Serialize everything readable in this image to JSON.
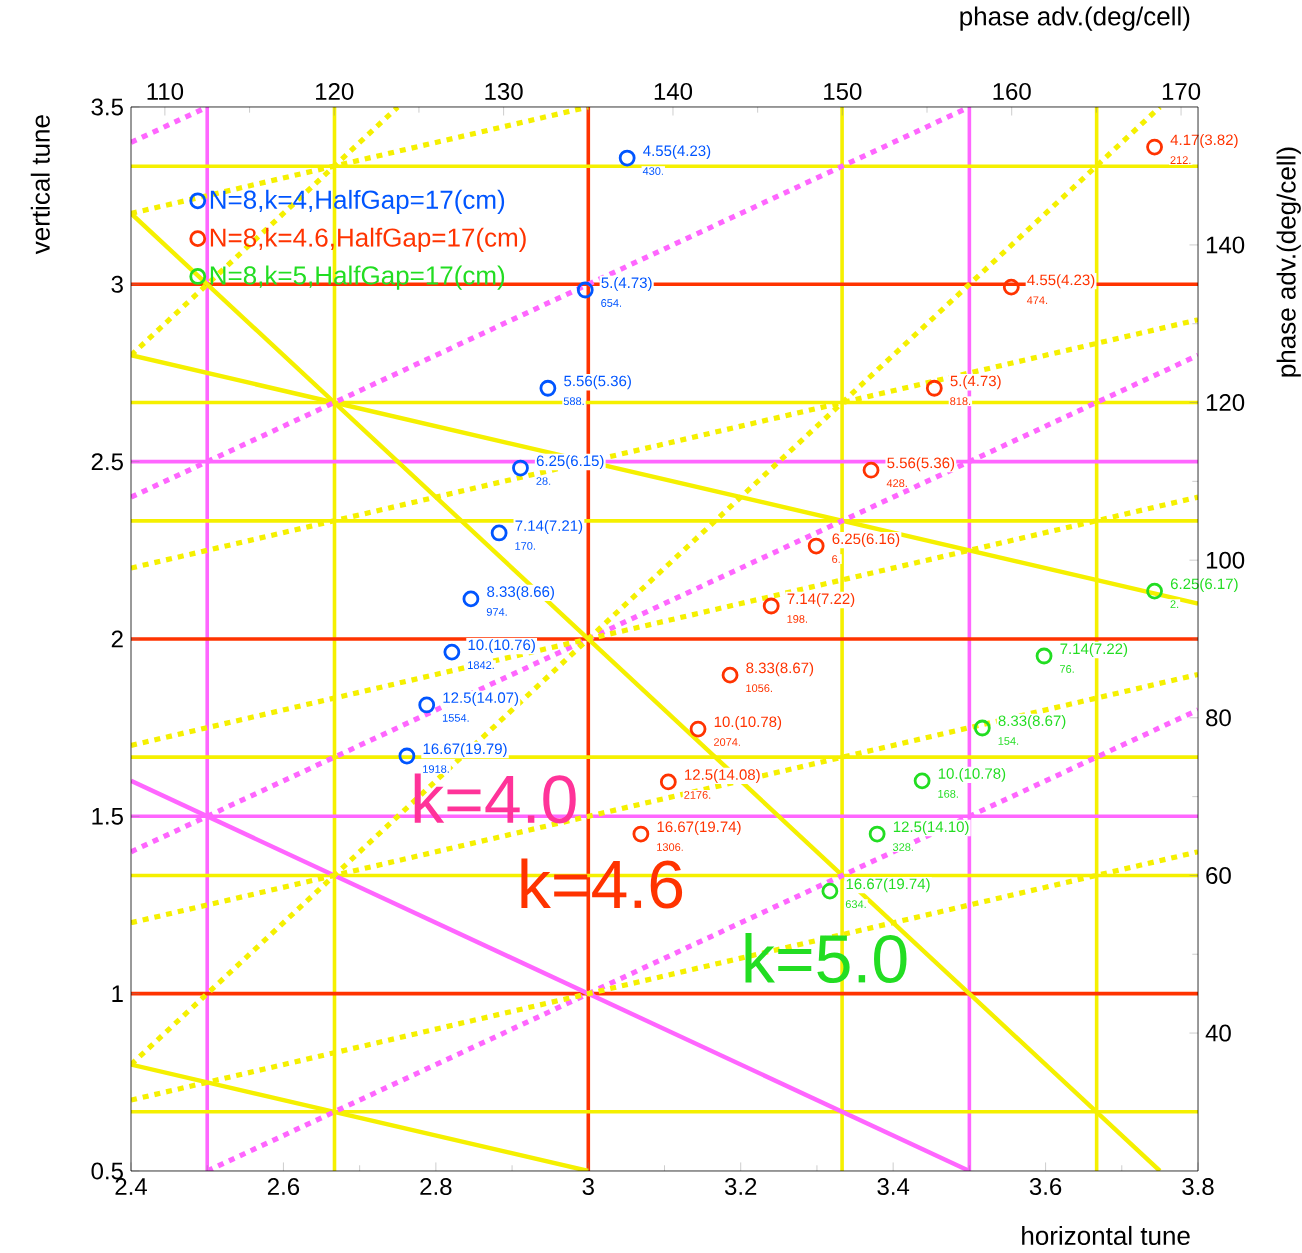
{
  "chart_data": {
    "type": "scatter",
    "xlabel": "horizontal tune",
    "ylabel": "vertical tune",
    "x2label": "phase adv.(deg/cell)",
    "y2label": "phase adv.(deg/cell)",
    "xlim": [
      2.4,
      3.8
    ],
    "ylim": [
      0.5,
      3.5
    ],
    "xticks": [
      2.4,
      2.6,
      2.8,
      3,
      3.2,
      3.4,
      3.6,
      3.8
    ],
    "yticks": [
      0.5,
      1,
      1.5,
      2,
      2.5,
      3,
      3.5
    ],
    "x2lim": [
      108,
      171
    ],
    "x2ticks": [
      110,
      120,
      130,
      140,
      150,
      160,
      170
    ],
    "y2lim": [
      22.5,
      157.5
    ],
    "y2ticks": [
      40,
      60,
      80,
      100,
      120,
      140
    ],
    "legend": "top left",
    "series": [
      {
        "name": "N=8,k=4,HalfGap=17(cm)",
        "color": "#0055ff",
        "marker": "circle",
        "x": [
          3.051,
          2.996,
          2.947,
          2.911,
          2.883,
          2.846,
          2.821,
          2.788,
          2.762
        ],
        "values": [
          3.356,
          2.984,
          2.707,
          2.482,
          2.299,
          2.113,
          1.963,
          1.814,
          1.67
        ]
      },
      {
        "name": "N=8,k=4.6,HalfGap=17(cm)",
        "color": "#ff3300",
        "marker": "circle",
        "x": [
          3.743,
          3.555,
          3.454,
          3.371,
          3.299,
          3.24,
          3.186,
          3.144,
          3.105,
          3.069
        ],
        "values": [
          3.387,
          2.992,
          2.707,
          2.476,
          2.262,
          2.093,
          1.898,
          1.746,
          1.597,
          1.45
        ]
      },
      {
        "name": "N=8,k=5,HalfGap=17(cm)",
        "color": "#22dd22",
        "marker": "circle",
        "x": [
          3.743,
          3.598,
          3.517,
          3.438,
          3.379,
          3.317
        ],
        "values": [
          2.135,
          1.952,
          1.749,
          1.6,
          1.45,
          1.289
        ]
      },
      {
        "type": "line",
        "color": "#ff66ff",
        "line_style": "solid",
        "x": [
          2.4,
          3.5
        ],
        "values": [
          1.6,
          0.5
        ]
      },
      {
        "type": "line",
        "color": "#f5f000",
        "line_style": "solid",
        "x": [
          2.4,
          3.75
        ],
        "values": [
          3.2,
          0.5
        ]
      },
      {
        "type": "line",
        "color": "#f5f000",
        "line_style": "solid",
        "x": [
          2.4,
          3.8
        ],
        "values": [
          2.8,
          2.1
        ]
      },
      {
        "type": "line",
        "color": "#f5f000",
        "line_style": "solid",
        "x": [
          2.4,
          3.0
        ],
        "values": [
          0.8,
          0.5
        ]
      },
      {
        "type": "line",
        "color": "#ff66ff",
        "line_style": "dotted",
        "x": [
          2.4,
          2.5
        ],
        "values": [
          3.4,
          3.5
        ]
      },
      {
        "type": "line",
        "color": "#ff66ff",
        "line_style": "dotted",
        "x": [
          2.4,
          3.5
        ],
        "values": [
          2.4,
          3.5
        ]
      },
      {
        "type": "line",
        "color": "#ff66ff",
        "line_style": "dotted",
        "x": [
          2.4,
          3.8
        ],
        "values": [
          1.4,
          2.8
        ]
      },
      {
        "type": "line",
        "color": "#ff66ff",
        "line_style": "dotted",
        "x": [
          2.5,
          3.8
        ],
        "values": [
          0.5,
          1.8
        ]
      },
      {
        "type": "line",
        "color": "#f5f000",
        "line_style": "dotted",
        "x": [
          2.4,
          3.8
        ],
        "values": [
          0.7,
          1.4
        ]
      },
      {
        "type": "line",
        "color": "#f5f000",
        "line_style": "dotted",
        "x": [
          2.4,
          3.8
        ],
        "values": [
          1.2,
          1.9
        ]
      },
      {
        "type": "line",
        "color": "#f5f000",
        "line_style": "dotted",
        "x": [
          2.4,
          3.8
        ],
        "values": [
          1.7,
          2.4
        ]
      },
      {
        "type": "line",
        "color": "#f5f000",
        "line_style": "dotted",
        "x": [
          2.4,
          3.8
        ],
        "values": [
          2.2,
          2.9
        ]
      },
      {
        "type": "line",
        "color": "#f5f000",
        "line_style": "dotted",
        "x": [
          2.4,
          3.0
        ],
        "values": [
          3.2,
          3.5
        ]
      },
      {
        "type": "line",
        "color": "#f5f000",
        "line_style": "dotted",
        "x": [
          2.4,
          2.75
        ],
        "values": [
          2.8,
          3.5
        ]
      },
      {
        "type": "line",
        "color": "#f5f000",
        "line_style": "dotted",
        "x": [
          2.4,
          3.75
        ],
        "values": [
          0.8,
          3.5
        ]
      }
    ],
    "ref_lines": [
      {
        "axis": "x",
        "value": 2.5,
        "color": "#ff66ff"
      },
      {
        "axis": "x",
        "value": 2.667,
        "color": "#f5f000"
      },
      {
        "axis": "x",
        "value": 3,
        "color": "#ff3300"
      },
      {
        "axis": "x",
        "value": 3.333,
        "color": "#f5f000"
      },
      {
        "axis": "x",
        "value": 3.5,
        "color": "#ff66ff"
      },
      {
        "axis": "x",
        "value": 3.667,
        "color": "#f5f000"
      },
      {
        "axis": "y",
        "value": 0.667,
        "color": "#f5f000"
      },
      {
        "axis": "y",
        "value": 1,
        "color": "#ff3300"
      },
      {
        "axis": "y",
        "value": 1.333,
        "color": "#f5f000"
      },
      {
        "axis": "y",
        "value": 1.5,
        "color": "#ff66ff"
      },
      {
        "axis": "y",
        "value": 1.667,
        "color": "#f5f000"
      },
      {
        "axis": "y",
        "value": 2,
        "color": "#ff3300"
      },
      {
        "axis": "y",
        "value": 2.333,
        "color": "#f5f000"
      },
      {
        "axis": "y",
        "value": 2.5,
        "color": "#ff66ff"
      },
      {
        "axis": "y",
        "value": 2.667,
        "color": "#f5f000"
      },
      {
        "axis": "y",
        "value": 3,
        "color": "#ff3300"
      },
      {
        "axis": "y",
        "value": 3.333,
        "color": "#f5f000"
      }
    ],
    "annotations": [
      "k=4.0",
      "k=4.6",
      "k=5.0",
      {
        "text": "4.55(4.23)",
        "x": 3.051,
        "y": 3.356
      },
      {
        "text": "430.",
        "x": 3.051,
        "y": 3.356
      },
      {
        "text": "5.(4.73)",
        "x": 2.996,
        "y": 2.984
      },
      {
        "text": "654.",
        "x": 2.996,
        "y": 2.984
      },
      {
        "text": "5.56(5.36)",
        "x": 2.947,
        "y": 2.707
      },
      {
        "text": "588.",
        "x": 2.947,
        "y": 2.707
      },
      {
        "text": "6.25(6.15)",
        "x": 2.911,
        "y": 2.482
      },
      {
        "text": "28.",
        "x": 2.911,
        "y": 2.482
      },
      {
        "text": "7.14(7.21)",
        "x": 2.883,
        "y": 2.299
      },
      {
        "text": "170.",
        "x": 2.883,
        "y": 2.299
      },
      {
        "text": "8.33(8.66)",
        "x": 2.846,
        "y": 2.113
      },
      {
        "text": "974.",
        "x": 2.846,
        "y": 2.113
      },
      {
        "text": "10.(10.76)",
        "x": 2.821,
        "y": 1.963
      },
      {
        "text": "1842.",
        "x": 2.821,
        "y": 1.963
      },
      {
        "text": "12.5(14.07)",
        "x": 2.788,
        "y": 1.814
      },
      {
        "text": "1554.",
        "x": 2.788,
        "y": 1.814
      },
      {
        "text": "16.67(19.79)",
        "x": 2.762,
        "y": 1.67
      },
      {
        "text": "1918.",
        "x": 2.762,
        "y": 1.67
      },
      {
        "text": "4.17(3.82)",
        "x": 3.743,
        "y": 3.387
      },
      {
        "text": "212.",
        "x": 3.743,
        "y": 3.387
      },
      {
        "text": "4.55(4.23)",
        "x": 3.555,
        "y": 2.992
      },
      {
        "text": "474.",
        "x": 3.555,
        "y": 2.992
      },
      {
        "text": "5.(4.73)",
        "x": 3.454,
        "y": 2.707
      },
      {
        "text": "818.",
        "x": 3.454,
        "y": 2.707
      },
      {
        "text": "5.56(5.36)",
        "x": 3.371,
        "y": 2.476
      },
      {
        "text": "428.",
        "x": 3.371,
        "y": 2.476
      },
      {
        "text": "6.25(6.16)",
        "x": 3.299,
        "y": 2.262
      },
      {
        "text": "6.",
        "x": 3.299,
        "y": 2.262
      },
      {
        "text": "7.14(7.22)",
        "x": 3.24,
        "y": 2.093
      },
      {
        "text": "198.",
        "x": 3.24,
        "y": 2.093
      },
      {
        "text": "8.33(8.67)",
        "x": 3.186,
        "y": 1.898
      },
      {
        "text": "1056.",
        "x": 3.186,
        "y": 1.898
      },
      {
        "text": "10.(10.78)",
        "x": 3.144,
        "y": 1.746
      },
      {
        "text": "2074.",
        "x": 3.144,
        "y": 1.746
      },
      {
        "text": "12.5(14.08)",
        "x": 3.105,
        "y": 1.597
      },
      {
        "text": "2176.",
        "x": 3.105,
        "y": 1.597
      },
      {
        "text": "16.67(19.74)",
        "x": 3.069,
        "y": 1.45
      },
      {
        "text": "1306.",
        "x": 3.069,
        "y": 1.45
      },
      {
        "text": "6.25(6.17)",
        "x": 3.743,
        "y": 2.135
      },
      {
        "text": "2.",
        "x": 3.743,
        "y": 2.135
      },
      {
        "text": "7.14(7.22)",
        "x": 3.598,
        "y": 1.952
      },
      {
        "text": "76.",
        "x": 3.598,
        "y": 1.952
      },
      {
        "text": "8.33(8.67)",
        "x": 3.517,
        "y": 1.749
      },
      {
        "text": "154.",
        "x": 3.517,
        "y": 1.749
      },
      {
        "text": "10.(10.78)",
        "x": 3.438,
        "y": 1.6
      },
      {
        "text": "168.",
        "x": 3.438,
        "y": 1.6
      },
      {
        "text": "12.5(14.10)",
        "x": 3.379,
        "y": 1.45
      },
      {
        "text": "328.",
        "x": 3.379,
        "y": 1.45
      },
      {
        "text": "16.67(19.74)",
        "x": 3.317,
        "y": 1.289
      },
      {
        "text": "634.",
        "x": 3.317,
        "y": 1.289
      }
    ]
  }
}
